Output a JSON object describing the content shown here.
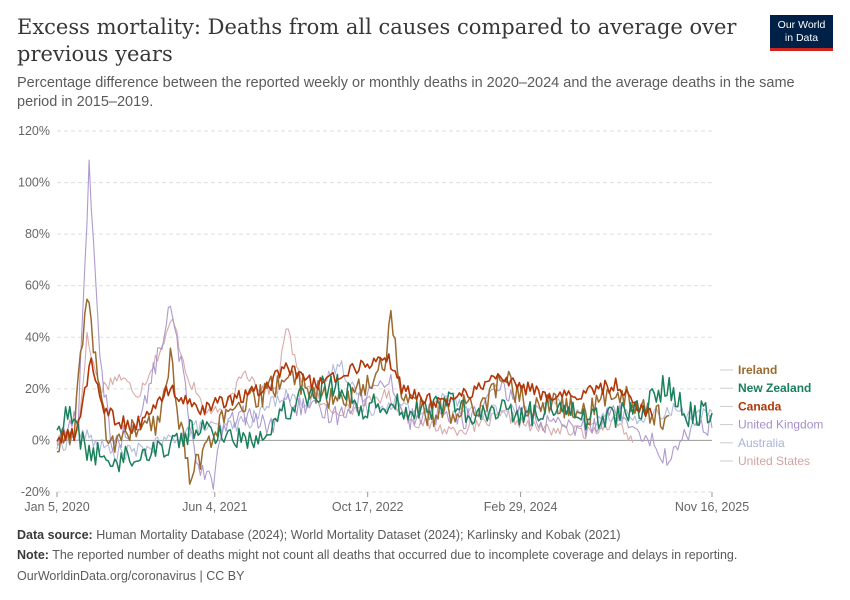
{
  "header": {
    "title": "Excess mortality: Deaths from all causes compared to average over previous years",
    "subtitle": "Percentage difference between the reported weekly or monthly deaths in 2020–2024 and the average deaths in the same period in 2015–2019.",
    "logo_line1": "Our World",
    "logo_line2": "in Data"
  },
  "footer": {
    "source_label": "Data source:",
    "source_text": "Human Mortality Database (2024); World Mortality Dataset (2024); Karlinsky and Kobak (2021)",
    "note_label": "Note:",
    "note_text": "The reported number of deaths might not count all deaths that occurred due to incomplete coverage and delays in reporting.",
    "url_text": "OurWorldinData.org/coronavirus | CC BY"
  },
  "colors": {
    "Ireland": "#9a6a2f",
    "New Zealand": "#18805a",
    "Canada": "#b13507",
    "United Kingdom": "#a58fca",
    "Australia": "#a8b4d9",
    "United States": "#d4a2a2",
    "zero_line": "#9a9a9a",
    "grid": "#dddddd",
    "logo_bg": "#002147",
    "logo_accent": "#ce261e"
  },
  "chart_data": {
    "type": "line",
    "title": "Excess mortality: Deaths from all causes compared to average over previous years",
    "xlabel": "",
    "ylabel": "",
    "x_ticks": [
      "Jan 5, 2020",
      "Jun 4, 2021",
      "Oct 17, 2022",
      "Feb 29, 2024",
      "Nov 16, 2025"
    ],
    "xlim": [
      "2020-01-05",
      "2025-11-16"
    ],
    "y_ticks": [
      "-20%",
      "0%",
      "20%",
      "40%",
      "60%",
      "80%",
      "100%",
      "120%"
    ],
    "ylim": [
      -20,
      120
    ],
    "y_unit": "%",
    "grid": "horizontal dashed",
    "legend": "right, end-of-line labels",
    "series_draw_order": [
      "United States",
      "Australia",
      "United Kingdom",
      "Ireland",
      "New Zealand",
      "Canada"
    ],
    "series": [
      {
        "name": "Ireland",
        "frequency": "weekly",
        "points": [
          [
            "2020-01-05",
            -3
          ],
          [
            "2020-03-01",
            2
          ],
          [
            "2020-04-12",
            59
          ],
          [
            "2020-05-10",
            30
          ],
          [
            "2020-06-21",
            -2
          ],
          [
            "2020-09-06",
            4
          ],
          [
            "2020-12-06",
            6
          ],
          [
            "2021-01-10",
            35
          ],
          [
            "2021-02-07",
            8
          ],
          [
            "2021-03-14",
            -12
          ],
          [
            "2021-04-18",
            -8
          ],
          [
            "2021-06-04",
            5
          ],
          [
            "2021-08-01",
            10
          ],
          [
            "2021-10-03",
            15
          ],
          [
            "2021-12-05",
            20
          ],
          [
            "2022-01-16",
            25
          ],
          [
            "2022-03-27",
            22
          ],
          [
            "2022-06-12",
            15
          ],
          [
            "2022-09-04",
            18
          ],
          [
            "2022-10-17",
            22
          ],
          [
            "2022-12-11",
            30
          ],
          [
            "2023-01-01",
            49
          ],
          [
            "2023-02-05",
            18
          ],
          [
            "2023-05-07",
            10
          ],
          [
            "2023-08-06",
            12
          ],
          [
            "2023-11-05",
            15
          ],
          [
            "2024-01-07",
            25
          ],
          [
            "2024-03-31",
            12
          ],
          [
            "2024-07-07",
            14
          ],
          [
            "2024-10-06",
            10
          ],
          [
            "2025-01-05",
            20
          ],
          [
            "2025-04-06",
            12
          ],
          [
            "2025-06-29",
            8
          ]
        ]
      },
      {
        "name": "New Zealand",
        "frequency": "weekly",
        "points": [
          [
            "2020-01-05",
            5
          ],
          [
            "2020-02-16",
            10
          ],
          [
            "2020-04-12",
            -4
          ],
          [
            "2020-07-05",
            -8
          ],
          [
            "2020-10-04",
            -5
          ],
          [
            "2021-01-03",
            -2
          ],
          [
            "2021-04-04",
            5
          ],
          [
            "2021-07-04",
            2
          ],
          [
            "2021-10-03",
            0
          ],
          [
            "2022-01-02",
            10
          ],
          [
            "2022-03-27",
            18
          ],
          [
            "2022-07-10",
            22
          ],
          [
            "2022-10-02",
            12
          ],
          [
            "2023-01-08",
            15
          ],
          [
            "2023-04-02",
            10
          ],
          [
            "2023-07-02",
            16
          ],
          [
            "2023-10-01",
            8
          ],
          [
            "2024-01-07",
            12
          ],
          [
            "2024-04-07",
            10
          ],
          [
            "2024-07-07",
            15
          ],
          [
            "2024-10-06",
            8
          ],
          [
            "2025-01-05",
            10
          ],
          [
            "2025-04-06",
            12
          ],
          [
            "2025-06-22",
            22
          ],
          [
            "2025-08-31",
            10
          ],
          [
            "2025-11-16",
            12
          ]
        ]
      },
      {
        "name": "Canada",
        "frequency": "weekly",
        "points": [
          [
            "2020-01-05",
            0
          ],
          [
            "2020-03-08",
            3
          ],
          [
            "2020-04-26",
            31
          ],
          [
            "2020-06-07",
            12
          ],
          [
            "2020-09-06",
            4
          ],
          [
            "2020-12-13",
            16
          ],
          [
            "2021-01-10",
            20
          ],
          [
            "2021-04-18",
            10
          ],
          [
            "2021-06-13",
            15
          ],
          [
            "2021-09-05",
            17
          ],
          [
            "2021-12-05",
            22
          ],
          [
            "2022-01-16",
            28
          ],
          [
            "2022-04-24",
            22
          ],
          [
            "2022-07-10",
            25
          ],
          [
            "2022-10-17",
            30
          ],
          [
            "2022-12-18",
            33
          ],
          [
            "2023-02-05",
            20
          ],
          [
            "2023-06-04",
            14
          ],
          [
            "2023-09-03",
            18
          ],
          [
            "2023-12-17",
            25
          ],
          [
            "2024-03-10",
            20
          ],
          [
            "2024-07-07",
            17
          ],
          [
            "2024-10-06",
            18
          ],
          [
            "2025-01-05",
            22
          ],
          [
            "2025-03-02",
            15
          ],
          [
            "2025-05-04",
            10
          ]
        ]
      },
      {
        "name": "United Kingdom",
        "frequency": "weekly",
        "points": [
          [
            "2020-01-05",
            0
          ],
          [
            "2020-03-15",
            10
          ],
          [
            "2020-04-19",
            108
          ],
          [
            "2020-05-24",
            30
          ],
          [
            "2020-07-05",
            -2
          ],
          [
            "2020-10-04",
            8
          ],
          [
            "2021-01-10",
            51
          ],
          [
            "2021-02-21",
            25
          ],
          [
            "2021-04-04",
            -8
          ],
          [
            "2021-05-30",
            -15
          ],
          [
            "2021-07-04",
            5
          ],
          [
            "2021-09-05",
            10
          ],
          [
            "2021-12-05",
            5
          ],
          [
            "2022-01-16",
            15
          ],
          [
            "2022-04-03",
            12
          ],
          [
            "2022-07-10",
            10
          ],
          [
            "2022-10-17",
            18
          ],
          [
            "2022-12-25",
            25
          ],
          [
            "2023-02-19",
            8
          ],
          [
            "2023-06-04",
            10
          ],
          [
            "2023-09-03",
            8
          ],
          [
            "2023-12-31",
            20
          ],
          [
            "2024-04-07",
            8
          ],
          [
            "2024-07-07",
            5
          ],
          [
            "2024-10-06",
            5
          ],
          [
            "2025-01-05",
            12
          ],
          [
            "2025-04-06",
            3
          ],
          [
            "2025-06-29",
            -8
          ],
          [
            "2025-09-07",
            5
          ],
          [
            "2025-11-16",
            6
          ]
        ]
      },
      {
        "name": "Australia",
        "frequency": "weekly",
        "points": [
          [
            "2020-01-05",
            -2
          ],
          [
            "2020-04-05",
            2
          ],
          [
            "2020-07-05",
            -5
          ],
          [
            "2020-10-04",
            -4
          ],
          [
            "2021-01-03",
            0
          ],
          [
            "2021-04-04",
            5
          ],
          [
            "2021-07-04",
            5
          ],
          [
            "2021-10-03",
            8
          ],
          [
            "2022-01-09",
            18
          ],
          [
            "2022-04-03",
            15
          ],
          [
            "2022-07-17",
            30
          ],
          [
            "2022-10-16",
            12
          ],
          [
            "2023-01-08",
            15
          ],
          [
            "2023-04-02",
            10
          ],
          [
            "2023-07-09",
            18
          ],
          [
            "2023-10-08",
            10
          ],
          [
            "2024-01-07",
            12
          ],
          [
            "2024-04-07",
            10
          ],
          [
            "2024-07-07",
            15
          ],
          [
            "2024-10-06",
            8
          ],
          [
            "2025-01-05",
            10
          ],
          [
            "2025-04-06",
            8
          ],
          [
            "2025-07-06",
            12
          ],
          [
            "2025-11-16",
            9
          ]
        ]
      },
      {
        "name": "United States",
        "frequency": "weekly",
        "points": [
          [
            "2020-01-05",
            0
          ],
          [
            "2020-03-15",
            4
          ],
          [
            "2020-04-12",
            40
          ],
          [
            "2020-05-24",
            20
          ],
          [
            "2020-07-26",
            25
          ],
          [
            "2020-09-27",
            18
          ],
          [
            "2020-12-20",
            38
          ],
          [
            "2021-01-17",
            47
          ],
          [
            "2021-03-07",
            25
          ],
          [
            "2021-05-02",
            12
          ],
          [
            "2021-07-04",
            10
          ],
          [
            "2021-09-05",
            28
          ],
          [
            "2021-10-31",
            20
          ],
          [
            "2021-12-26",
            20
          ],
          [
            "2022-01-23",
            45
          ],
          [
            "2022-03-06",
            25
          ],
          [
            "2022-06-05",
            12
          ],
          [
            "2022-09-04",
            12
          ],
          [
            "2022-12-18",
            18
          ],
          [
            "2023-03-05",
            8
          ],
          [
            "2023-07-02",
            4
          ],
          [
            "2023-10-01",
            5
          ],
          [
            "2024-01-07",
            10
          ],
          [
            "2024-04-07",
            5
          ],
          [
            "2024-07-07",
            4
          ],
          [
            "2024-10-06",
            3
          ],
          [
            "2025-01-05",
            8
          ],
          [
            "2025-03-02",
            0
          ]
        ]
      }
    ]
  }
}
